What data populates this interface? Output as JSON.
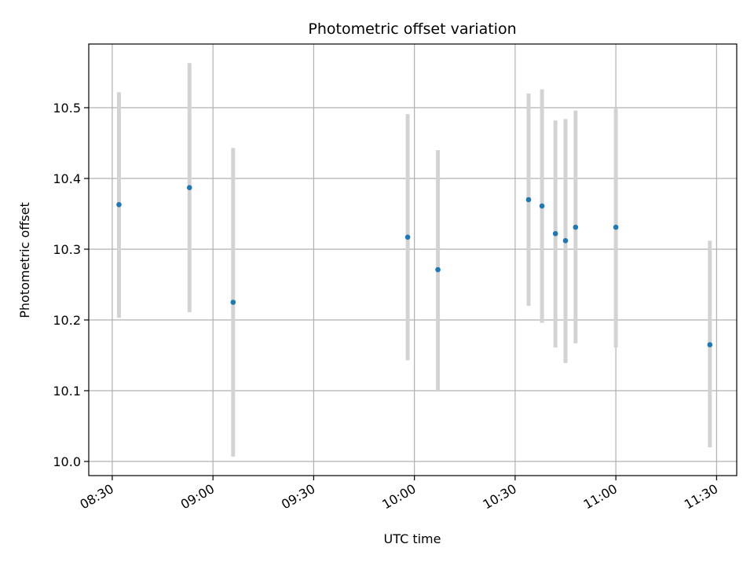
{
  "chart_data": {
    "type": "scatter",
    "title": "Photometric offset variation",
    "xlabel": "UTC time",
    "ylabel": "Photometric offset",
    "x_ticks": [
      "08:30",
      "09:00",
      "09:30",
      "10:00",
      "10:30",
      "11:00",
      "11:30"
    ],
    "y_ticks": [
      "10.0",
      "10.1",
      "10.2",
      "10.3",
      "10.4",
      "10.5"
    ],
    "xlim": [
      "08:23",
      "11:36"
    ],
    "ylim": [
      9.98,
      10.59
    ],
    "grid": true,
    "colors": {
      "points": "#1f77b4",
      "error_bars": "#d3d3d3",
      "grid": "#b0b0b0"
    },
    "points": [
      {
        "x": "08:32",
        "y": 10.363,
        "y_low": 10.203,
        "y_high": 10.522
      },
      {
        "x": "08:53",
        "y": 10.387,
        "y_low": 10.211,
        "y_high": 10.563
      },
      {
        "x": "09:06",
        "y": 10.225,
        "y_low": 10.007,
        "y_high": 10.443
      },
      {
        "x": "09:58",
        "y": 10.317,
        "y_low": 10.143,
        "y_high": 10.491
      },
      {
        "x": "10:07",
        "y": 10.271,
        "y_low": 10.1,
        "y_high": 10.44
      },
      {
        "x": "10:34",
        "y": 10.37,
        "y_low": 10.22,
        "y_high": 10.52
      },
      {
        "x": "10:38",
        "y": 10.361,
        "y_low": 10.196,
        "y_high": 10.526
      },
      {
        "x": "10:42",
        "y": 10.322,
        "y_low": 10.161,
        "y_high": 10.482
      },
      {
        "x": "10:45",
        "y": 10.312,
        "y_low": 10.139,
        "y_high": 10.484
      },
      {
        "x": "10:48",
        "y": 10.331,
        "y_low": 10.167,
        "y_high": 10.496
      },
      {
        "x": "11:00",
        "y": 10.331,
        "y_low": 10.161,
        "y_high": 10.5
      },
      {
        "x": "11:28",
        "y": 10.165,
        "y_low": 10.02,
        "y_high": 10.312
      }
    ]
  }
}
